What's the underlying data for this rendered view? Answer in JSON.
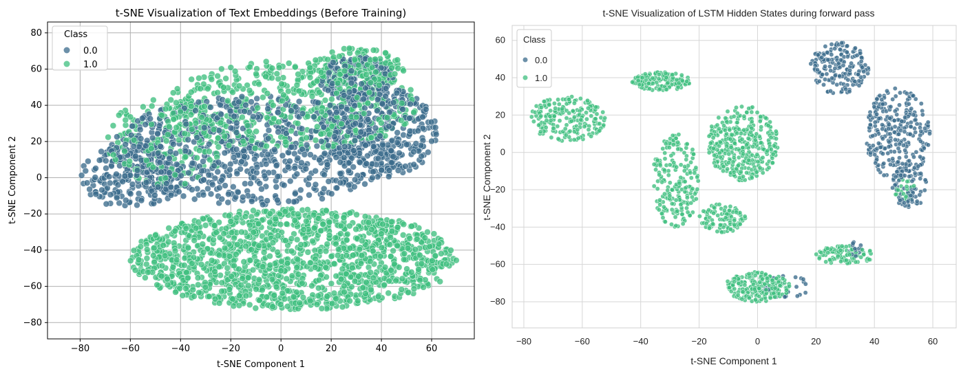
{
  "colors": {
    "class0": "#3b6b8c",
    "class1": "#3fbf7f",
    "grid1": "#b0b0b0",
    "grid2": "#d6d6d6"
  },
  "chart_data": [
    {
      "type": "scatter",
      "title": "t-SNE Visualization of Text Embeddings (Before Training)",
      "xlabel": "t-SNE Component 1",
      "ylabel": "t-SNE Component 2",
      "xlim": [
        -93,
        77
      ],
      "ylim": [
        -89,
        86
      ],
      "xticks": [
        -80,
        -60,
        -40,
        -20,
        0,
        20,
        40,
        60
      ],
      "yticks": [
        -80,
        -60,
        -40,
        -20,
        0,
        20,
        40,
        60,
        80
      ],
      "grid": true,
      "legend": {
        "title": "Class",
        "placement": "top-left",
        "entries": [
          "0.0",
          "1.0"
        ]
      },
      "series": [
        {
          "name": "0.0",
          "clusters": [
            {
              "cx": -10,
              "cy": 15,
              "rx": 58,
              "ry": 30,
              "n": 700
            },
            {
              "cx": 40,
              "cy": 25,
              "rx": 22,
              "ry": 25,
              "n": 350
            },
            {
              "cx": 30,
              "cy": 55,
              "rx": 15,
              "ry": 12,
              "n": 120
            },
            {
              "cx": -60,
              "cy": 0,
              "rx": 20,
              "ry": 18,
              "n": 200
            }
          ]
        },
        {
          "name": "1.0",
          "clusters": [
            {
              "cx": 5,
              "cy": -45,
              "rx": 65,
              "ry": 28,
              "n": 1400
            },
            {
              "cx": 5,
              "cy": 40,
              "rx": 50,
              "ry": 25,
              "n": 450
            },
            {
              "cx": -45,
              "cy": 20,
              "rx": 25,
              "ry": 25,
              "n": 200
            },
            {
              "cx": 30,
              "cy": 60,
              "rx": 20,
              "ry": 12,
              "n": 150
            }
          ]
        }
      ]
    },
    {
      "type": "scatter",
      "title": "t-SNE Visualization of LSTM Hidden States during forward pass",
      "xlabel": "t-SNE Component 1",
      "ylabel": "t-SNE Component 2",
      "xlim": [
        -84,
        68
      ],
      "ylim": [
        -94,
        68
      ],
      "xticks": [
        -80,
        -60,
        -40,
        -20,
        0,
        20,
        40,
        60
      ],
      "yticks": [
        -80,
        -60,
        -40,
        -20,
        0,
        20,
        40,
        60
      ],
      "grid": true,
      "legend": {
        "title": "Class",
        "placement": "top-left",
        "entries": [
          "0.0",
          "1.0"
        ]
      },
      "series": [
        {
          "name": "0.0",
          "clusters": [
            {
              "cx": 28,
              "cy": 45,
              "rx": 10,
              "ry": 14,
              "n": 180
            },
            {
              "cx": 48,
              "cy": 10,
              "rx": 11,
              "ry": 25,
              "n": 280
            },
            {
              "cx": 52,
              "cy": -18,
              "rx": 6,
              "ry": 12,
              "n": 80
            },
            {
              "cx": 33,
              "cy": -52,
              "rx": 3,
              "ry": 4,
              "n": 15
            },
            {
              "cx": 10,
              "cy": -72,
              "rx": 8,
              "ry": 6,
              "n": 25
            }
          ]
        },
        {
          "name": "1.0",
          "clusters": [
            {
              "cx": -65,
              "cy": 18,
              "rx": 13,
              "ry": 12,
              "n": 200
            },
            {
              "cx": -33,
              "cy": 38,
              "rx": 10,
              "ry": 5,
              "n": 150
            },
            {
              "cx": -28,
              "cy": -15,
              "rx": 8,
              "ry": 25,
              "n": 200
            },
            {
              "cx": -5,
              "cy": 5,
              "rx": 12,
              "ry": 20,
              "n": 350
            },
            {
              "cx": -12,
              "cy": -35,
              "rx": 8,
              "ry": 8,
              "n": 100
            },
            {
              "cx": 0,
              "cy": -72,
              "rx": 11,
              "ry": 8,
              "n": 220
            },
            {
              "cx": 30,
              "cy": -55,
              "rx": 10,
              "ry": 5,
              "n": 100
            },
            {
              "cx": 50,
              "cy": -20,
              "rx": 4,
              "ry": 6,
              "n": 25
            }
          ]
        }
      ]
    }
  ]
}
